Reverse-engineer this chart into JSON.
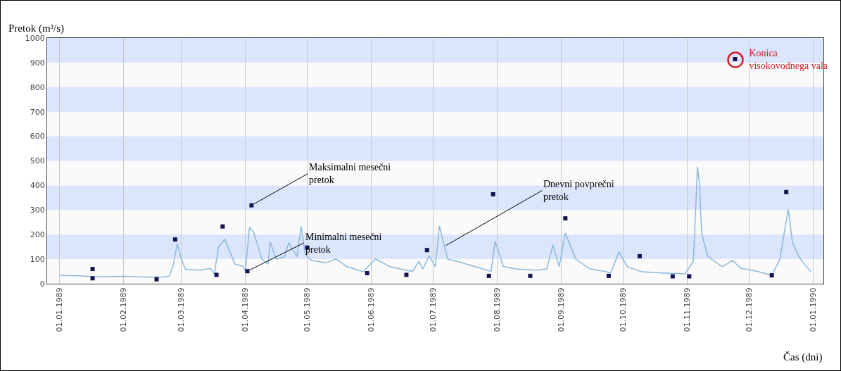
{
  "chart_data": {
    "type": "line",
    "ylabel": "Pretok (m³/s)",
    "xlabel": "Čas (dni)",
    "ylim": [
      0,
      1000
    ],
    "yticks": [
      0,
      100,
      200,
      300,
      400,
      500,
      600,
      700,
      800,
      900,
      1000
    ],
    "xlim": [
      "1988-12-26",
      "1990-01-06"
    ],
    "xticks": [
      {
        "value": "1989-01-01",
        "label": "01.01.1989"
      },
      {
        "value": "1989-02-01",
        "label": "01.02.1989"
      },
      {
        "value": "1989-03-01",
        "label": "01.03.1989"
      },
      {
        "value": "1989-04-01",
        "label": "01.04.1989"
      },
      {
        "value": "1989-05-01",
        "label": "01.05.1989"
      },
      {
        "value": "1989-06-01",
        "label": "01.06.1989"
      },
      {
        "value": "1989-07-01",
        "label": "01.07.1989"
      },
      {
        "value": "1989-08-01",
        "label": "01.08.1989"
      },
      {
        "value": "1989-09-01",
        "label": "01.09.1989"
      },
      {
        "value": "1989-10-01",
        "label": "01.10.1989"
      },
      {
        "value": "1989-11-01",
        "label": "01.11.1989"
      },
      {
        "value": "1989-12-01",
        "label": "01.12.1989"
      },
      {
        "value": "1990-01-01",
        "label": "01.01.1990"
      }
    ],
    "grid": "x",
    "legend": "top right",
    "bands": [
      {
        "axis": "y",
        "from": 100,
        "to": 200,
        "color": "#dbe5fb"
      },
      {
        "axis": "y",
        "from": 300,
        "to": 400,
        "color": "#dbe5fb"
      },
      {
        "axis": "y",
        "from": 500,
        "to": 600,
        "color": "#dbe5fb"
      },
      {
        "axis": "y",
        "from": 700,
        "to": 800,
        "color": "#dbe5fb"
      },
      {
        "axis": "y",
        "from": 900,
        "to": 1000,
        "color": "#dbe5fb"
      }
    ],
    "series": [
      {
        "type": "line",
        "color": "#8cb9dc",
        "marker": "none",
        "x": [
          "1989-01-01",
          "1989-01-10",
          "1989-01-20",
          "1989-02-01",
          "1989-02-10",
          "1989-02-20",
          "1989-02-23",
          "1989-02-25",
          "1989-02-27",
          "1989-03-01",
          "1989-03-03",
          "1989-03-10",
          "1989-03-15",
          "1989-03-17",
          "1989-03-19",
          "1989-03-22",
          "1989-03-27",
          "1989-03-31",
          "1989-04-01",
          "1989-04-03",
          "1989-04-05",
          "1989-04-09",
          "1989-04-12",
          "1989-04-13",
          "1989-04-16",
          "1989-04-20",
          "1989-04-22",
          "1989-04-26",
          "1989-04-28",
          "1989-04-30",
          "1989-05-03",
          "1989-05-10",
          "1989-05-15",
          "1989-05-20",
          "1989-05-28",
          "1989-06-03",
          "1989-06-10",
          "1989-06-15",
          "1989-06-21",
          "1989-06-24",
          "1989-06-26",
          "1989-06-29",
          "1989-07-02",
          "1989-07-04",
          "1989-07-08",
          "1989-07-15",
          "1989-07-25",
          "1989-07-29",
          "1989-07-31",
          "1989-08-04",
          "1989-08-10",
          "1989-08-20",
          "1989-08-25",
          "1989-08-28",
          "1989-08-31",
          "1989-09-03",
          "1989-09-08",
          "1989-09-15",
          "1989-09-22",
          "1989-09-25",
          "1989-09-29",
          "1989-10-03",
          "1989-10-10",
          "1989-10-20",
          "1989-10-31",
          "1989-11-04",
          "1989-11-06",
          "1989-11-07",
          "1989-11-08",
          "1989-11-11",
          "1989-11-18",
          "1989-11-23",
          "1989-11-27",
          "1989-12-05",
          "1989-12-12",
          "1989-12-16",
          "1989-12-18",
          "1989-12-20",
          "1989-12-22",
          "1989-12-25",
          "1989-12-28",
          "1989-12-31"
        ],
        "values": [
          34,
          32,
          28,
          30,
          27,
          27,
          30,
          70,
          163,
          100,
          58,
          55,
          62,
          40,
          150,
          180,
          80,
          70,
          50,
          230,
          210,
          100,
          80,
          169,
          100,
          110,
          167,
          110,
          233,
          120,
          95,
          85,
          101,
          70,
          49,
          101,
          70,
          60,
          50,
          90,
          60,
          115,
          70,
          235,
          100,
          85,
          60,
          50,
          173,
          70,
          60,
          55,
          60,
          158,
          70,
          206,
          100,
          60,
          50,
          44,
          130,
          69,
          49,
          44,
          40,
          92,
          476,
          407,
          206,
          111,
          69,
          94,
          63,
          50,
          34,
          101,
          206,
          302,
          168,
          111,
          77,
          49
        ]
      },
      {
        "type": "scatter",
        "name": "Konica\nvisokovodnega vala",
        "color": "#141452",
        "marker": "square",
        "x": [
          "1989-01-17",
          "1989-01-17",
          "1989-02-17",
          "1989-02-26",
          "1989-03-18",
          "1989-03-21",
          "1989-04-02",
          "1989-04-04",
          "1989-05-01",
          "1989-05-30",
          "1989-06-18",
          "1989-06-28",
          "1989-07-28",
          "1989-07-30",
          "1989-08-17",
          "1989-09-03",
          "1989-09-24",
          "1989-10-09",
          "1989-10-25",
          "1989-11-02",
          "1989-12-12",
          "1989-12-19"
        ],
        "values": [
          60,
          22,
          18,
          180,
          36,
          233,
          51,
          319,
          147,
          43,
          36,
          137,
          32,
          364,
          32,
          266,
          32,
          112,
          30,
          30,
          34,
          373
        ]
      }
    ],
    "annotations": [
      {
        "text": "Maksimalni mesečni\npretok",
        "x": "1989-04-04",
        "y": 319
      },
      {
        "text": "Minimalni mesečni\npretok",
        "x": "1989-04-02",
        "y": 51
      },
      {
        "text": "Dnevni povprečni\npretok",
        "x": "1989-07-06",
        "y": 150
      }
    ]
  }
}
